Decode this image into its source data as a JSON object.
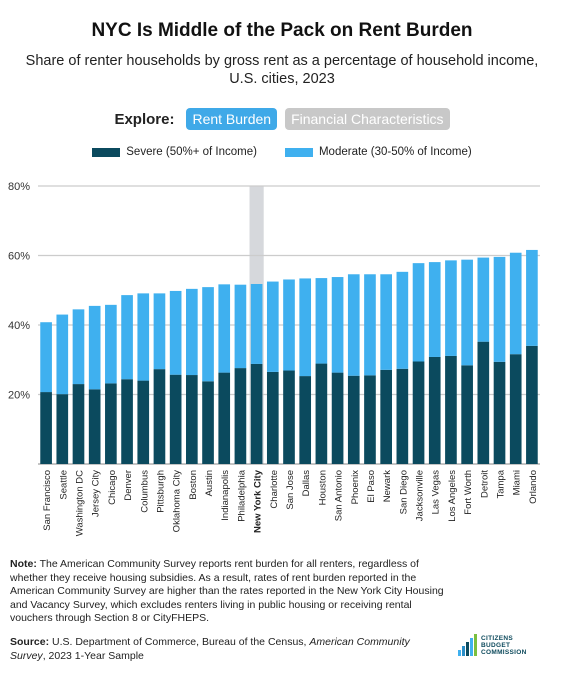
{
  "title": "NYC Is Middle of the Pack on Rent Burden",
  "subtitle": "Share of renter households by gross rent as a percentage of household income, U.S. cities, 2023",
  "explore": {
    "label": "Explore:",
    "options": [
      "Rent Burden",
      "Financial Characteristics"
    ],
    "selected": "Rent Burden"
  },
  "colors": {
    "severe": "#0b4a5e",
    "moderate": "#3fb0ef",
    "highlight": "#d6d8dc",
    "grid": "#cccccc",
    "pill_active": "#3fa9e8",
    "pill_inactive": "#c8c8c8"
  },
  "chart_data": {
    "type": "bar",
    "stacked": true,
    "categories": [
      "San Francisco",
      "Seattle",
      "Washington DC",
      "Jersey City",
      "Chicago",
      "Denver",
      "Columbus",
      "Pittsburgh",
      "Oklahoma City",
      "Boston",
      "Austin",
      "Indianapolis",
      "Philadelphia",
      "New York City",
      "Charlotte",
      "San Jose",
      "Dallas",
      "Houston",
      "San Antonio",
      "Phoenix",
      "El Paso",
      "Newark",
      "San Diego",
      "Jacksonville",
      "Las Vegas",
      "Los Angeles",
      "Fort Worth",
      "Detroit",
      "Tampa",
      "Miami",
      "Orlando"
    ],
    "highlight_category": "New York City",
    "series": [
      {
        "name": "Severe (50%+ of Income)",
        "values": [
          20.7,
          20.1,
          23.0,
          21.5,
          23.2,
          24.4,
          24.0,
          27.3,
          25.7,
          25.6,
          23.8,
          26.3,
          27.6,
          28.8,
          26.5,
          26.9,
          25.3,
          28.9,
          26.3,
          25.4,
          25.5,
          27.1,
          27.4,
          29.5,
          30.8,
          31.1,
          28.4,
          35.2,
          29.4,
          31.6,
          34.0
        ]
      },
      {
        "name": "Moderate (30-50% of Income)",
        "values": [
          20.1,
          22.9,
          21.5,
          24.0,
          22.6,
          24.2,
          25.1,
          21.8,
          24.1,
          24.8,
          27.1,
          25.4,
          24.0,
          23.0,
          26.0,
          26.2,
          28.1,
          24.6,
          27.5,
          29.2,
          29.1,
          27.5,
          27.9,
          28.3,
          27.3,
          27.5,
          30.4,
          24.2,
          30.2,
          29.2,
          27.6
        ]
      }
    ],
    "ylim": [
      0,
      80
    ],
    "yticks": [
      "20%",
      "40%",
      "60%",
      "80%"
    ],
    "ytick_values": [
      20,
      40,
      60,
      80
    ],
    "grid": true,
    "legend_position": "top"
  },
  "footer": {
    "note_label": "Note:",
    "note_text": " The American Community Survey reports rent burden for all renters, regardless of whether they receive housing subsidies. As a result, rates of rent burden reported in the American Community Survey are higher than the rates reported in the New York City Housing and Vacancy Survey, which excludes renters living in public housing or receiving rental vouchers through Section 8 or CityFHEPS.",
    "source_label": "Source:",
    "source_text": " U.S. Department of Commerce, Bureau of the Census, ",
    "source_italic": "American Community Survey",
    "source_tail": ", 2023 1-Year Sample"
  },
  "logo": {
    "line1": "CITIZENS",
    "line2": "BUDGET",
    "line3": "COMMISSION"
  }
}
